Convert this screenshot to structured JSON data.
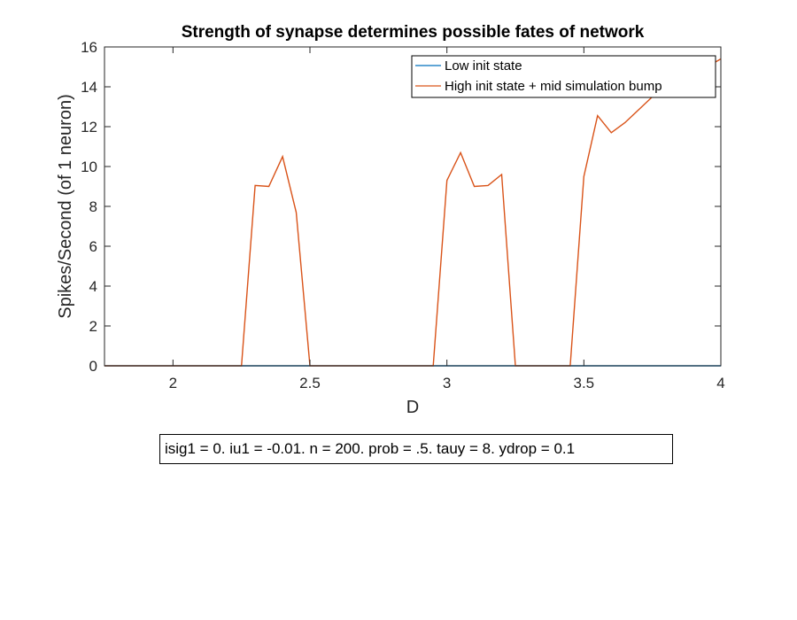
{
  "chart_data": {
    "type": "line",
    "title": "Strength of synapse determines possible fates of network",
    "xlabel": "D",
    "ylabel": "Spikes/Second (of 1 neuron)",
    "xlim": [
      1.75,
      4
    ],
    "ylim": [
      0,
      16
    ],
    "xticks": [
      2,
      2.5,
      3,
      3.5,
      4
    ],
    "xtick_labels": [
      "2",
      "2.5",
      "3",
      "3.5",
      "4"
    ],
    "yticks": [
      0,
      2,
      4,
      6,
      8,
      10,
      12,
      14,
      16
    ],
    "ytick_labels": [
      "0",
      "2",
      "4",
      "6",
      "8",
      "10",
      "12",
      "14",
      "16"
    ],
    "grid": false,
    "legend_position": "top-right",
    "series": [
      {
        "name": "Low init state",
        "color": "#0072BD",
        "x": [
          1.75,
          4.0
        ],
        "y": [
          0,
          0
        ]
      },
      {
        "name": "High init state + mid simulation bump",
        "color": "#D95319",
        "x": [
          1.75,
          1.8,
          1.9,
          2.0,
          2.1,
          2.2,
          2.25,
          2.3,
          2.35,
          2.4,
          2.45,
          2.5,
          2.55,
          2.6,
          2.7,
          2.8,
          2.9,
          2.95,
          3.0,
          3.05,
          3.1,
          3.15,
          3.2,
          3.25,
          3.3,
          3.35,
          3.4,
          3.45,
          3.5,
          3.55,
          3.6,
          3.65,
          3.7,
          3.75,
          3.8,
          3.85,
          3.9,
          3.95,
          4.0
        ],
        "y": [
          0,
          0,
          0,
          0,
          0,
          0,
          0,
          9.05,
          9.0,
          10.5,
          7.7,
          0,
          0,
          0,
          0,
          0,
          0,
          0,
          9.3,
          10.7,
          9.0,
          9.05,
          9.6,
          0,
          0,
          0,
          0,
          0,
          9.5,
          12.55,
          11.7,
          12.2,
          12.85,
          13.5,
          14.15,
          14.5,
          14.6,
          15.0,
          15.4
        ]
      }
    ]
  },
  "annotation": "isig1 = 0. iu1 = -0.01. n = 200. prob = .5. tauy = 8. ydrop = 0.1"
}
